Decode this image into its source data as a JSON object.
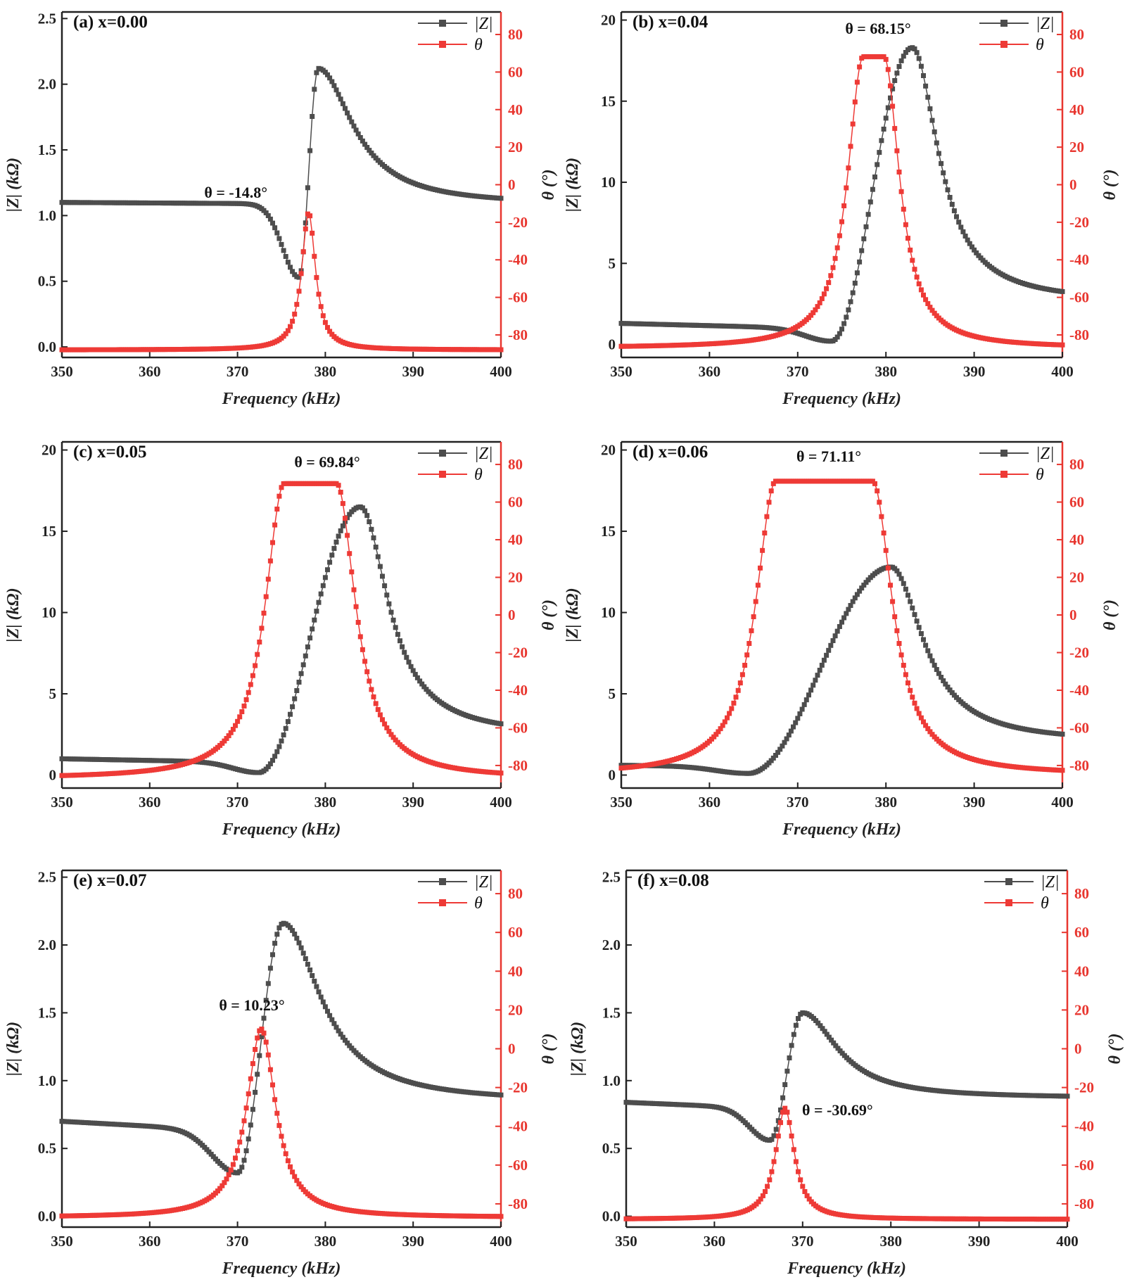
{
  "colors": {
    "z": "#4d4d4d",
    "theta": "#ee3a36",
    "axis_theta": "#e8362f",
    "axis": "#222222"
  },
  "chart_data": [
    {
      "panel": "(a)",
      "label": "x=0.00",
      "type": "line",
      "xlabel": "Frequency (kHz)",
      "ylabel_left": "|Z| (kΩ)",
      "ylabel_right": "θ (°)",
      "xlim": [
        350,
        400
      ],
      "xticks": [
        "350",
        "360",
        "370",
        "380",
        "390",
        "400"
      ],
      "ylim_left": [
        -0.08,
        2.55
      ],
      "yticks_left": [
        "0.0",
        "0.5",
        "1.0",
        "1.5",
        "2.0",
        "2.5"
      ],
      "ylim_right": [
        -92,
        92
      ],
      "yticks_right": [
        "-80",
        "-60",
        "-40",
        "-20",
        "0",
        "20",
        "40",
        "60",
        "80"
      ],
      "legend": [
        "|Z|",
        "θ"
      ],
      "annotation": "θ = -14.8°",
      "z_model": {
        "base_start": 1.1,
        "base_end": 1.08,
        "droop_depth": 0.45,
        "droop_width": 2.6,
        "fr": 377.0,
        "fa": 379.2,
        "zr": 0.53,
        "za": 2.12,
        "tail": 1.08,
        "rise_width": 0.9,
        "fall_width": 6.0
      },
      "theta_model": {
        "peak": -14.8,
        "floor": -88,
        "center": 378.1,
        "width": 0.95,
        "plateau": 0
      }
    },
    {
      "panel": "(b)",
      "label": "x=0.04",
      "type": "line",
      "xlabel": "Frequency (kHz)",
      "ylabel_left": "|Z| (kΩ)",
      "ylabel_right": "θ (°)",
      "xlim": [
        350,
        400
      ],
      "xticks": [
        "350",
        "360",
        "370",
        "380",
        "390",
        "400"
      ],
      "ylim_left": [
        -0.8,
        20.5
      ],
      "yticks_left": [
        "0",
        "5",
        "10",
        "15",
        "20"
      ],
      "ylim_right": [
        -92,
        92
      ],
      "yticks_right": [
        "-80",
        "-60",
        "-40",
        "-20",
        "0",
        "20",
        "40",
        "60",
        "80"
      ],
      "legend": [
        "|Z|",
        "θ"
      ],
      "annotation": "θ = 68.15°",
      "z_model": {
        "base_start": 1.3,
        "base_end": 0.6,
        "droop_depth": 0.2,
        "droop_width": 4.0,
        "fr": 373.8,
        "fa": 383.0,
        "zr": 0.2,
        "za": 18.3,
        "tail": 2.6,
        "rise_width": 2.4,
        "fall_width": 4.5
      },
      "theta_model": {
        "peak": 68.15,
        "floor": -87,
        "center": 378.6,
        "width": 2.1,
        "plateau": 1.2
      }
    },
    {
      "panel": "(c)",
      "label": "x=0.05",
      "type": "line",
      "xlabel": "Frequency (kHz)",
      "ylabel_left": "|Z| (kΩ)",
      "ylabel_right": "θ (°)",
      "xlim": [
        350,
        400
      ],
      "xticks": [
        "350",
        "360",
        "370",
        "380",
        "390",
        "400"
      ],
      "ylim_left": [
        -0.8,
        20.5
      ],
      "yticks_left": [
        "0",
        "5",
        "10",
        "15",
        "20"
      ],
      "ylim_right": [
        -92,
        92
      ],
      "yticks_right": [
        "-80",
        "-60",
        "-40",
        "-20",
        "0",
        "20",
        "40",
        "60",
        "80"
      ],
      "legend": [
        "|Z|",
        "θ"
      ],
      "annotation": "θ = 69.84°",
      "z_model": {
        "base_start": 1.0,
        "base_end": 0.5,
        "droop_depth": 0.2,
        "droop_width": 4.0,
        "fr": 372.4,
        "fa": 384.0,
        "zr": 0.15,
        "za": 16.5,
        "tail": 2.4,
        "rise_width": 3.0,
        "fall_width": 4.8
      },
      "theta_model": {
        "peak": 69.84,
        "floor": -87,
        "center": 378.3,
        "width": 2.6,
        "plateau": 3.0
      }
    },
    {
      "panel": "(d)",
      "label": "x=0.06",
      "type": "line",
      "xlabel": "Frequency (kHz)",
      "ylabel_left": "|Z| (kΩ)",
      "ylabel_right": "θ (°)",
      "xlim": [
        350,
        400
      ],
      "xticks": [
        "350",
        "360",
        "370",
        "380",
        "390",
        "400"
      ],
      "ylim_left": [
        -0.8,
        20.5
      ],
      "yticks_left": [
        "0",
        "5",
        "10",
        "15",
        "20"
      ],
      "ylim_right": [
        -92,
        92
      ],
      "yticks_right": [
        "-80",
        "-60",
        "-40",
        "-20",
        "0",
        "20",
        "40",
        "60",
        "80"
      ],
      "legend": [
        "|Z|",
        "θ"
      ],
      "annotation": "θ = 71.11°",
      "z_model": {
        "base_start": 0.6,
        "base_end": 0.3,
        "droop_depth": 0.15,
        "droop_width": 5.0,
        "fr": 364.4,
        "fa": 380.6,
        "zr": 0.1,
        "za": 12.8,
        "tail": 2.0,
        "rise_width": 4.2,
        "fall_width": 5.5
      },
      "theta_model": {
        "peak": 71.11,
        "floor": -85,
        "center": 373.0,
        "width": 2.7,
        "plateau": 5.5
      }
    },
    {
      "panel": "(e)",
      "label": "x=0.07",
      "type": "line",
      "xlabel": "Frequency (kHz)",
      "ylabel_left": "|Z| (kΩ)",
      "ylabel_right": "θ (°)",
      "xlim": [
        350,
        400
      ],
      "xticks": [
        "350",
        "360",
        "370",
        "380",
        "390",
        "400"
      ],
      "ylim_left": [
        -0.08,
        2.55
      ],
      "yticks_left": [
        "0.0",
        "0.5",
        "1.0",
        "1.5",
        "2.0",
        "2.5"
      ],
      "ylim_right": [
        -92,
        92
      ],
      "yticks_right": [
        "-80",
        "-60",
        "-40",
        "-20",
        "0",
        "20",
        "40",
        "60",
        "80"
      ],
      "legend": [
        "|Z|",
        "θ"
      ],
      "annotation": "θ = 10.23°",
      "z_model": {
        "base_start": 0.7,
        "base_end": 0.52,
        "droop_depth": 0.25,
        "droop_width": 4.0,
        "fr": 370.0,
        "fa": 375.2,
        "zr": 0.32,
        "za": 2.16,
        "tail": 0.84,
        "rise_width": 1.6,
        "fall_width": 6.5
      },
      "theta_model": {
        "peak": 10.23,
        "floor": -87,
        "center": 372.7,
        "width": 2.0,
        "plateau": 0
      }
    },
    {
      "panel": "(f)",
      "label": "x=0.08",
      "type": "line",
      "xlabel": "Frequency (kHz)",
      "ylabel_left": "|Z| (kΩ)",
      "ylabel_right": "θ (°)",
      "xlim": [
        350,
        400
      ],
      "xticks": [
        "350",
        "360",
        "370",
        "380",
        "390",
        "400"
      ],
      "ylim_left": [
        -0.08,
        2.55
      ],
      "yticks_left": [
        "0.0",
        "0.5",
        "1.0",
        "1.5",
        "2.0",
        "2.5"
      ],
      "ylim_right": [
        -92,
        92
      ],
      "yticks_right": [
        "-80",
        "-60",
        "-40",
        "-20",
        "0",
        "20",
        "40",
        "60",
        "80"
      ],
      "legend": [
        "|Z|",
        "θ"
      ],
      "annotation": "θ = -30.69°",
      "z_model": {
        "base_start": 0.84,
        "base_end": 0.7,
        "droop_depth": 0.18,
        "droop_width": 3.2,
        "fr": 366.3,
        "fa": 370.0,
        "zr": 0.56,
        "za": 1.5,
        "tail": 0.87,
        "rise_width": 1.2,
        "fall_width": 6.0
      },
      "theta_model": {
        "peak": -30.69,
        "floor": -88,
        "center": 368.0,
        "width": 1.3,
        "plateau": 0
      }
    }
  ]
}
